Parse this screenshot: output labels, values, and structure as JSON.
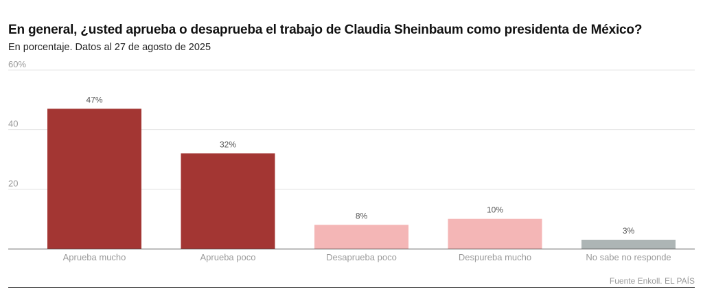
{
  "title": "En general, ¿usted aprueba o desaprueba el trabajo de Claudia Sheinbaum como presidenta de México?",
  "subtitle": "En porcentaje. Datos al 27 de agosto de 2025",
  "source": "Fuente Enkoll. EL PAÍS",
  "chart_data": {
    "type": "bar",
    "title": "En general, ¿usted aprueba o desaprueba el trabajo de Claudia Sheinbaum como presidenta de México?",
    "xlabel": "",
    "ylabel": "",
    "ylim": [
      0,
      60
    ],
    "yticks": [
      {
        "value": 60,
        "label": "60%"
      },
      {
        "value": 40,
        "label": "40"
      },
      {
        "value": 20,
        "label": "20"
      }
    ],
    "grid": true,
    "categories": [
      "Aprueba mucho",
      "Aprueba poco",
      "Desaprueba poco",
      "Despureba mucho",
      "No sabe no responde"
    ],
    "values": [
      47,
      32,
      8,
      10,
      3
    ],
    "data_labels": [
      "47%",
      "32%",
      "8%",
      "10%",
      "3%"
    ],
    "colors": [
      "#a33633",
      "#a33633",
      "#f4b6b6",
      "#f4b6b6",
      "#adb5b5"
    ]
  }
}
